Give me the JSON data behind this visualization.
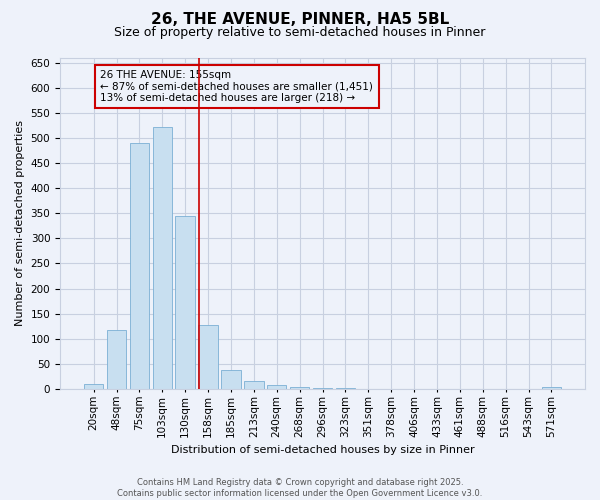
{
  "title_line1": "26, THE AVENUE, PINNER, HA5 5BL",
  "title_line2": "Size of property relative to semi-detached houses in Pinner",
  "xlabel": "Distribution of semi-detached houses by size in Pinner",
  "ylabel": "Number of semi-detached properties",
  "categories": [
    "20sqm",
    "48sqm",
    "75sqm",
    "103sqm",
    "130sqm",
    "158sqm",
    "185sqm",
    "213sqm",
    "240sqm",
    "268sqm",
    "296sqm",
    "323sqm",
    "351sqm",
    "378sqm",
    "406sqm",
    "433sqm",
    "461sqm",
    "488sqm",
    "516sqm",
    "543sqm",
    "571sqm"
  ],
  "values": [
    10,
    118,
    490,
    522,
    345,
    128,
    38,
    15,
    7,
    4,
    2,
    1,
    0,
    0,
    0,
    0,
    0,
    0,
    0,
    0,
    3
  ],
  "bar_color": "#c8dff0",
  "bar_edge_color": "#7bafd4",
  "highlight_label": "26 THE AVENUE: 155sqm",
  "pct_smaller_label": "← 87% of semi-detached houses are smaller (1,451)",
  "pct_larger_label": "13% of semi-detached houses are larger (218) →",
  "annotation_box_color": "#cc0000",
  "vline_color": "#cc0000",
  "vline_x": 4.62,
  "ylim": [
    0,
    660
  ],
  "yticks": [
    0,
    50,
    100,
    150,
    200,
    250,
    300,
    350,
    400,
    450,
    500,
    550,
    600,
    650
  ],
  "footer_line1": "Contains HM Land Registry data © Crown copyright and database right 2025.",
  "footer_line2": "Contains public sector information licensed under the Open Government Licence v3.0.",
  "bg_color": "#eef2fa",
  "grid_color": "#c8d0e0",
  "title_fontsize": 11,
  "subtitle_fontsize": 9,
  "ylabel_fontsize": 8,
  "xlabel_fontsize": 8,
  "tick_fontsize": 7.5,
  "annot_fontsize": 7.5,
  "footer_fontsize": 6
}
